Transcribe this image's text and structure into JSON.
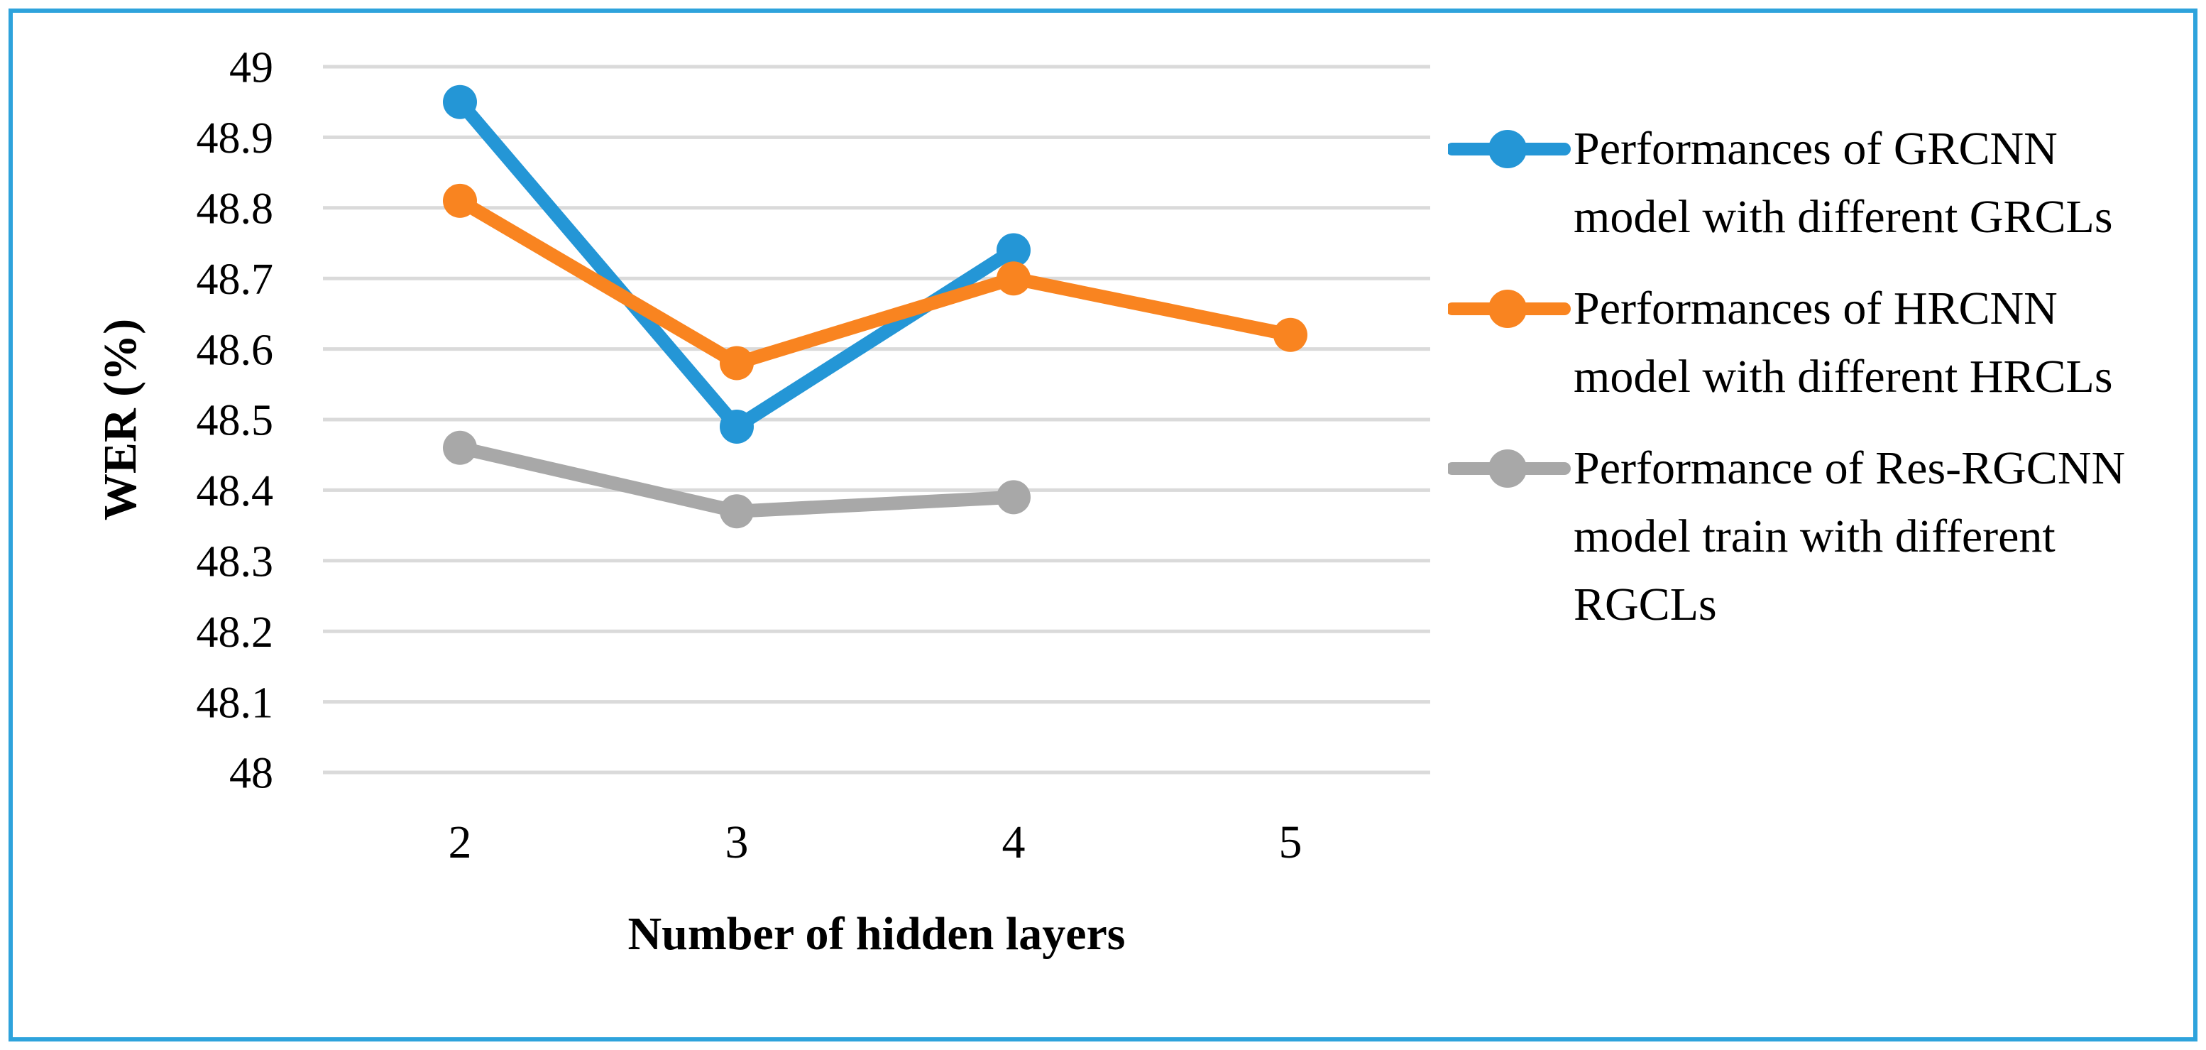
{
  "figure": {
    "background": "#FFFFFF",
    "border_color": "#2EA3DC"
  },
  "chart_data": {
    "type": "line",
    "title": "",
    "xlabel": "Number of hidden layers",
    "ylabel": "WER (%)",
    "x_categories": [
      "2",
      "3",
      "4",
      "5"
    ],
    "ylim": [
      48,
      49
    ],
    "yticks": [
      "49",
      "48.9",
      "48.8",
      "48.7",
      "48.6",
      "48.5",
      "48.4",
      "48.3",
      "48.2",
      "48.1",
      "48"
    ],
    "grid": true,
    "gridline_color": "#DADADA",
    "legend_position": "right",
    "series": [
      {
        "name": "Performances of GRCNN model with different GRCLs",
        "color": "#2496D6",
        "marker": "circle",
        "values": [
          48.95,
          48.49,
          48.74,
          null
        ]
      },
      {
        "name": "Performances of HRCNN model with different HRCLs",
        "color": "#F98420",
        "marker": "circle",
        "values": [
          48.81,
          48.58,
          48.7,
          48.62
        ]
      },
      {
        "name": "Performance of Res-RGCNN model train with different RGCLs",
        "color": "#A8A8A8",
        "marker": "circle",
        "values": [
          48.46,
          48.37,
          48.39,
          null
        ]
      }
    ]
  }
}
